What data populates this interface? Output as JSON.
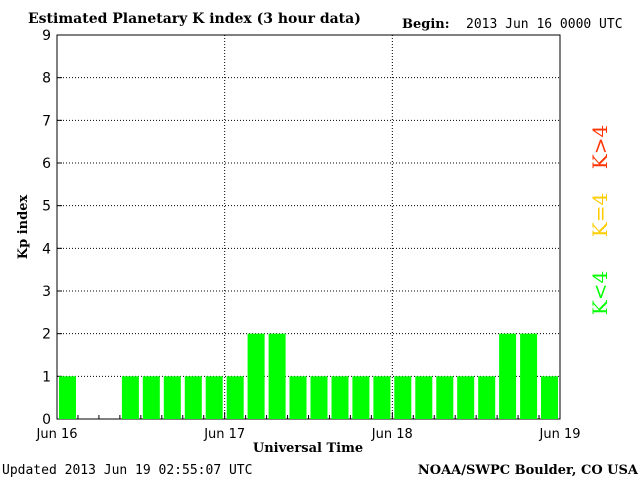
{
  "header": {
    "title": "Estimated Planetary K index (3 hour data)",
    "begin_label": "Begin:",
    "begin_value": "2013 Jun 16 0000 UTC"
  },
  "footer": {
    "updated": "Updated 2013 Jun 19 02:55:07 UTC",
    "source": "NOAA/SWPC Boulder, CO USA"
  },
  "legend": {
    "items": [
      {
        "label": "K<4",
        "color": "#00ff00"
      },
      {
        "label": "K=4",
        "color": "#ffcc00"
      },
      {
        "label": "K>4",
        "color": "#ff3300"
      }
    ]
  },
  "chart_data": {
    "type": "bar",
    "title": "Estimated Planetary K index (3 hour data)",
    "xlabel": "Universal Time",
    "ylabel": "Kp index",
    "ylim": [
      0,
      9
    ],
    "y_ticks": [
      "0",
      "1",
      "2",
      "3",
      "4",
      "5",
      "6",
      "7",
      "8",
      "9"
    ],
    "x_ticks": [
      "Jun 16",
      "Jun 17",
      "Jun 18",
      "Jun 19"
    ],
    "grid": true,
    "interval_hours": 3,
    "values": [
      1,
      0,
      0,
      1,
      1,
      1,
      1,
      1,
      1,
      2,
      2,
      1,
      1,
      1,
      1,
      1,
      1,
      1,
      1,
      1,
      1,
      2,
      2,
      1
    ],
    "colors": {
      "below4": "#00ff00",
      "equal4": "#ffcc00",
      "above4": "#ff3300"
    }
  }
}
